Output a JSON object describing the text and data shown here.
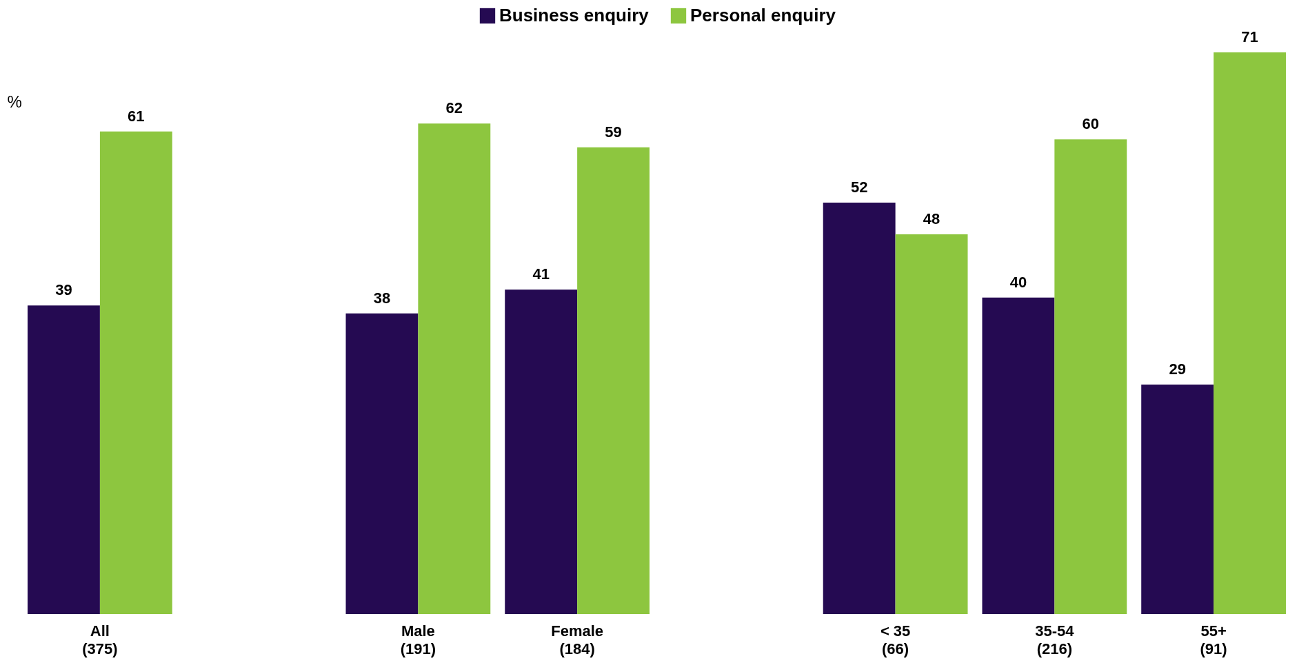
{
  "chart_data": {
    "type": "bar",
    "ylabel": "%",
    "categories": [
      "All\n(375)",
      null,
      "Male\n(191)",
      "Female\n(184)",
      null,
      "< 35\n(66)",
      "35-54\n(216)",
      "55+\n(91)"
    ],
    "series": [
      {
        "name": "Business enquiry",
        "color": "#250a52",
        "values": [
          39,
          null,
          38,
          41,
          null,
          52,
          40,
          29
        ]
      },
      {
        "name": "Personal enquiry",
        "color": "#8dc63f",
        "values": [
          61,
          null,
          62,
          59,
          null,
          48,
          60,
          71
        ]
      }
    ],
    "data_labels": true,
    "legend": "top"
  }
}
